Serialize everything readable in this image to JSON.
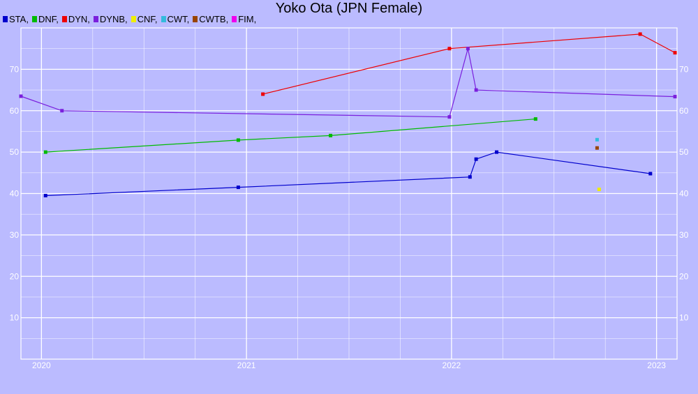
{
  "chart_data": {
    "type": "line",
    "title": "Yoko Ota (JPN Female)",
    "xlabel": "",
    "ylabel": "",
    "grid": true,
    "legend_position": "top-left",
    "xlim": [
      2019.9,
      2023.1
    ],
    "ylim": [
      0,
      80
    ],
    "x_ticks": [
      "2020",
      "2021",
      "2022",
      "2023"
    ],
    "y_ticks": [
      "10",
      "20",
      "30",
      "40",
      "50",
      "60",
      "70"
    ],
    "series": [
      {
        "name": "STA",
        "color": "#0000cc",
        "points": [
          [
            2020.02,
            39.5
          ],
          [
            2020.96,
            41.5
          ],
          [
            2022.09,
            44.0
          ],
          [
            2022.12,
            48.3
          ],
          [
            2022.22,
            50.0
          ],
          [
            2022.97,
            44.8
          ]
        ]
      },
      {
        "name": "DNF",
        "color": "#00bb00",
        "points": [
          [
            2020.02,
            50.0
          ],
          [
            2020.96,
            52.9
          ],
          [
            2021.41,
            54.0
          ],
          [
            2022.41,
            58.0
          ]
        ]
      },
      {
        "name": "DYN",
        "color": "#ee0000",
        "points": [
          [
            2021.08,
            64.0
          ],
          [
            2021.99,
            75.0
          ],
          [
            2022.92,
            78.5
          ],
          [
            2023.09,
            74.0
          ]
        ]
      },
      {
        "name": "DYNB",
        "color": "#7a1fdd",
        "points": [
          [
            2019.9,
            63.5
          ],
          [
            2020.1,
            60.0
          ],
          [
            2021.99,
            58.5
          ],
          [
            2022.08,
            75.0
          ],
          [
            2022.12,
            65.0
          ],
          [
            2023.09,
            63.4
          ]
        ]
      },
      {
        "name": "CNF",
        "color": "#eeee00",
        "points": [
          [
            2022.72,
            41.0
          ]
        ]
      },
      {
        "name": "CWT",
        "color": "#33bbdd",
        "points": [
          [
            2022.71,
            53.0
          ]
        ]
      },
      {
        "name": "CWTB",
        "color": "#994400",
        "points": [
          [
            2022.71,
            51.0
          ]
        ]
      },
      {
        "name": "FIM",
        "color": "#ee00ee",
        "points": []
      }
    ]
  }
}
